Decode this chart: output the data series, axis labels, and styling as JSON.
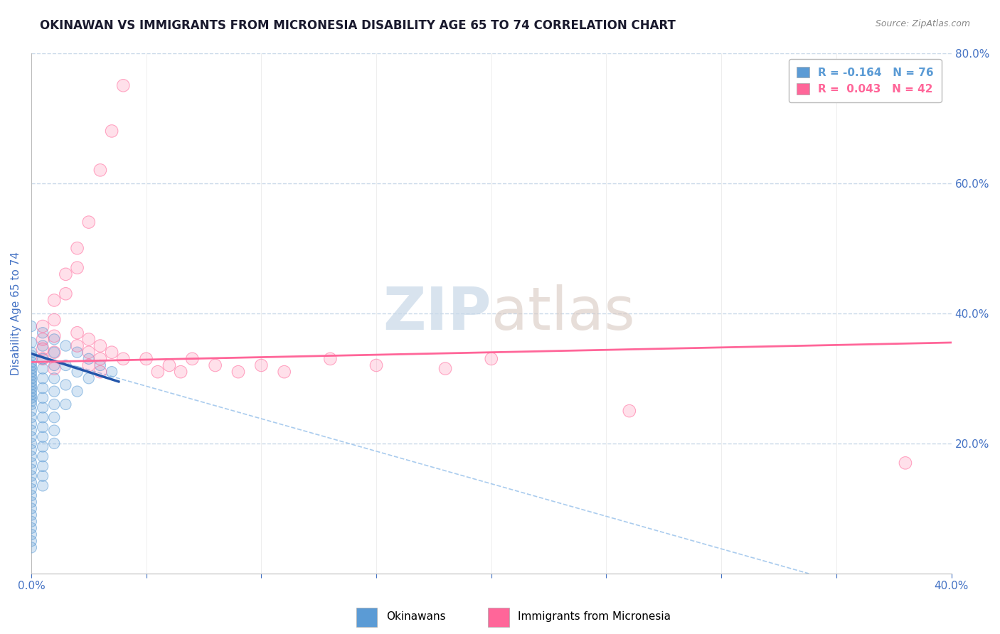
{
  "title": "OKINAWAN VS IMMIGRANTS FROM MICRONESIA DISABILITY AGE 65 TO 74 CORRELATION CHART",
  "source_text": "Source: ZipAtlas.com",
  "ylabel": "Disability Age 65 to 74",
  "xlim": [
    0.0,
    0.4
  ],
  "ylim": [
    0.0,
    0.8
  ],
  "xticks": [
    0.0,
    0.05,
    0.1,
    0.15,
    0.2,
    0.25,
    0.3,
    0.35,
    0.4
  ],
  "yticks": [
    0.0,
    0.2,
    0.4,
    0.6,
    0.8
  ],
  "legend_entries": [
    {
      "label": "R = -0.164   N = 76",
      "color": "#5b9bd5"
    },
    {
      "label": "R =  0.043   N = 42",
      "color": "#ff6699"
    }
  ],
  "okinawan_color": "#5b9bd5",
  "micronesia_color": "#ff6699",
  "watermark_line1": "ZIP",
  "watermark_line2": "atlas",
  "background_color": "#ffffff",
  "grid_color": "#c8d8e8",
  "title_color": "#1a1a2e",
  "axis_label_color": "#4472c4",
  "tick_label_color": "#4472c4",
  "okinawan_scatter": [
    [
      0.0,
      0.38
    ],
    [
      0.0,
      0.355
    ],
    [
      0.0,
      0.34
    ],
    [
      0.0,
      0.335
    ],
    [
      0.0,
      0.325
    ],
    [
      0.0,
      0.32
    ],
    [
      0.0,
      0.315
    ],
    [
      0.0,
      0.31
    ],
    [
      0.0,
      0.305
    ],
    [
      0.0,
      0.3
    ],
    [
      0.0,
      0.295
    ],
    [
      0.0,
      0.29
    ],
    [
      0.0,
      0.285
    ],
    [
      0.0,
      0.28
    ],
    [
      0.0,
      0.275
    ],
    [
      0.0,
      0.27
    ],
    [
      0.0,
      0.265
    ],
    [
      0.0,
      0.26
    ],
    [
      0.0,
      0.25
    ],
    [
      0.0,
      0.24
    ],
    [
      0.0,
      0.23
    ],
    [
      0.0,
      0.22
    ],
    [
      0.0,
      0.21
    ],
    [
      0.0,
      0.2
    ],
    [
      0.0,
      0.19
    ],
    [
      0.0,
      0.18
    ],
    [
      0.0,
      0.17
    ],
    [
      0.0,
      0.16
    ],
    [
      0.0,
      0.15
    ],
    [
      0.0,
      0.14
    ],
    [
      0.0,
      0.13
    ],
    [
      0.0,
      0.12
    ],
    [
      0.0,
      0.11
    ],
    [
      0.0,
      0.1
    ],
    [
      0.0,
      0.09
    ],
    [
      0.0,
      0.08
    ],
    [
      0.0,
      0.07
    ],
    [
      0.0,
      0.06
    ],
    [
      0.0,
      0.05
    ],
    [
      0.0,
      0.04
    ],
    [
      0.005,
      0.37
    ],
    [
      0.005,
      0.35
    ],
    [
      0.005,
      0.33
    ],
    [
      0.005,
      0.315
    ],
    [
      0.005,
      0.3
    ],
    [
      0.005,
      0.285
    ],
    [
      0.005,
      0.27
    ],
    [
      0.005,
      0.255
    ],
    [
      0.005,
      0.24
    ],
    [
      0.005,
      0.225
    ],
    [
      0.005,
      0.21
    ],
    [
      0.005,
      0.195
    ],
    [
      0.005,
      0.18
    ],
    [
      0.005,
      0.165
    ],
    [
      0.005,
      0.15
    ],
    [
      0.005,
      0.135
    ],
    [
      0.01,
      0.36
    ],
    [
      0.01,
      0.34
    ],
    [
      0.01,
      0.32
    ],
    [
      0.01,
      0.3
    ],
    [
      0.01,
      0.28
    ],
    [
      0.01,
      0.26
    ],
    [
      0.01,
      0.24
    ],
    [
      0.01,
      0.22
    ],
    [
      0.01,
      0.2
    ],
    [
      0.015,
      0.35
    ],
    [
      0.015,
      0.32
    ],
    [
      0.015,
      0.29
    ],
    [
      0.015,
      0.26
    ],
    [
      0.02,
      0.34
    ],
    [
      0.02,
      0.31
    ],
    [
      0.02,
      0.28
    ],
    [
      0.025,
      0.33
    ],
    [
      0.025,
      0.3
    ],
    [
      0.03,
      0.32
    ],
    [
      0.035,
      0.31
    ]
  ],
  "micronesia_scatter": [
    [
      0.005,
      0.38
    ],
    [
      0.005,
      0.36
    ],
    [
      0.005,
      0.345
    ],
    [
      0.005,
      0.33
    ],
    [
      0.01,
      0.42
    ],
    [
      0.01,
      0.39
    ],
    [
      0.01,
      0.365
    ],
    [
      0.01,
      0.34
    ],
    [
      0.01,
      0.315
    ],
    [
      0.015,
      0.46
    ],
    [
      0.015,
      0.43
    ],
    [
      0.02,
      0.5
    ],
    [
      0.02,
      0.47
    ],
    [
      0.02,
      0.37
    ],
    [
      0.02,
      0.35
    ],
    [
      0.025,
      0.54
    ],
    [
      0.025,
      0.36
    ],
    [
      0.025,
      0.34
    ],
    [
      0.025,
      0.32
    ],
    [
      0.03,
      0.62
    ],
    [
      0.03,
      0.35
    ],
    [
      0.03,
      0.33
    ],
    [
      0.03,
      0.31
    ],
    [
      0.035,
      0.68
    ],
    [
      0.035,
      0.34
    ],
    [
      0.04,
      0.75
    ],
    [
      0.04,
      0.33
    ],
    [
      0.05,
      0.33
    ],
    [
      0.055,
      0.31
    ],
    [
      0.06,
      0.32
    ],
    [
      0.065,
      0.31
    ],
    [
      0.07,
      0.33
    ],
    [
      0.08,
      0.32
    ],
    [
      0.09,
      0.31
    ],
    [
      0.1,
      0.32
    ],
    [
      0.11,
      0.31
    ],
    [
      0.13,
      0.33
    ],
    [
      0.15,
      0.32
    ],
    [
      0.18,
      0.315
    ],
    [
      0.2,
      0.33
    ],
    [
      0.26,
      0.25
    ],
    [
      0.38,
      0.17
    ]
  ],
  "ok_line": [
    [
      0.0,
      0.338
    ],
    [
      0.038,
      0.295
    ]
  ],
  "mic_line": [
    [
      0.0,
      0.325
    ],
    [
      0.4,
      0.355
    ]
  ],
  "diag_line": [
    [
      0.0,
      0.338
    ],
    [
      0.338,
      0.0
    ]
  ]
}
